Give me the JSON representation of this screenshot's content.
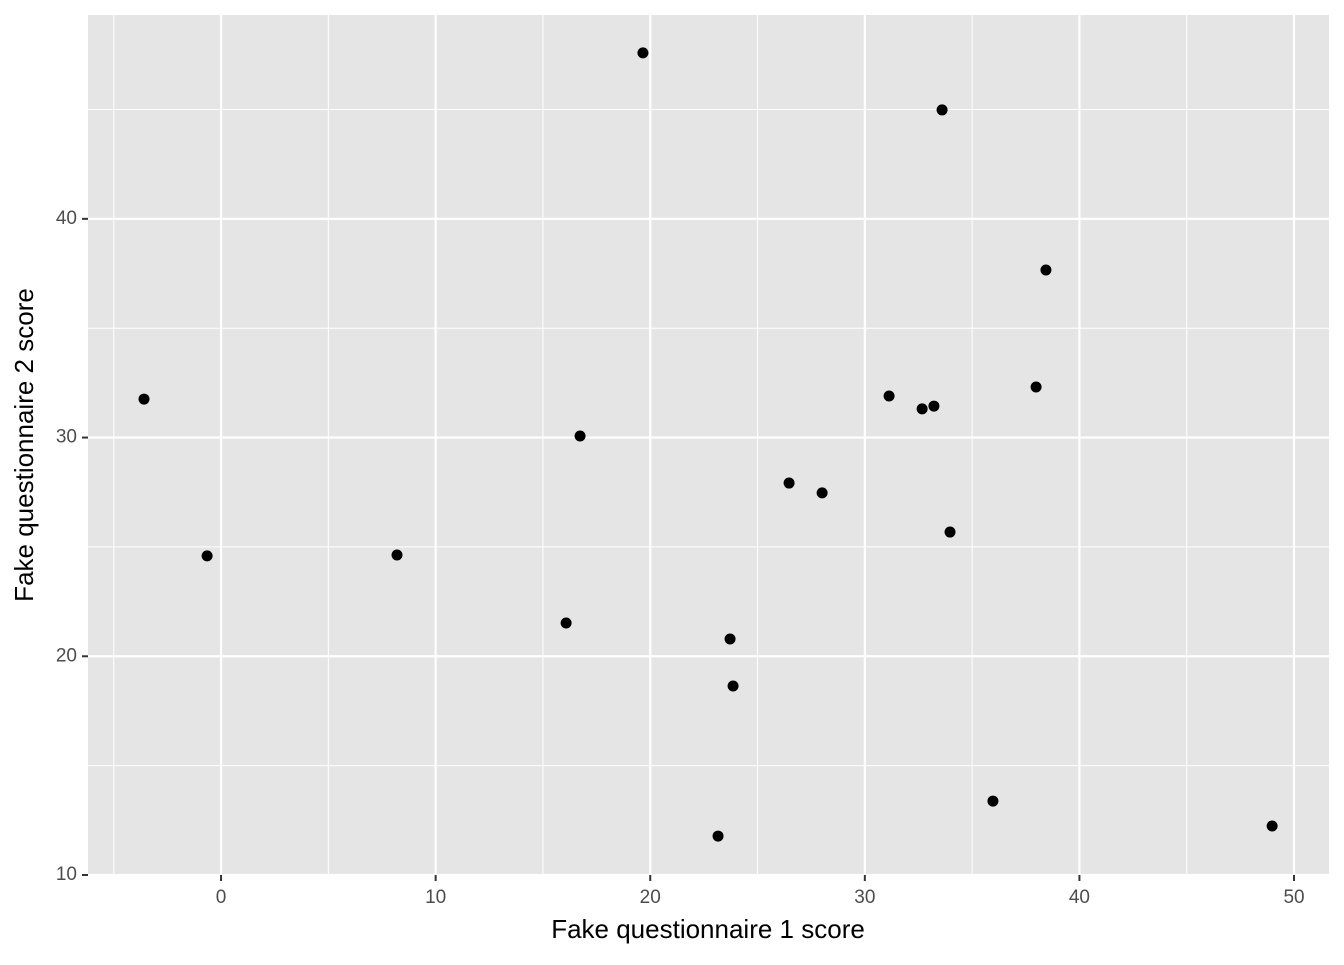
{
  "chart_data": {
    "type": "scatter",
    "xlabel": "Fake questionnaire 1 score",
    "ylabel": "Fake questionnaire 2 score",
    "x": [
      19.66,
      33.6,
      38.44,
      -3.59,
      37.98,
      31.13,
      32.67,
      33.22,
      16.73,
      26.47,
      28.01,
      33.97,
      -0.65,
      8.2,
      16.08,
      23.72,
      23.86,
      35.97,
      23.16,
      48.98
    ],
    "y": [
      47.59,
      44.98,
      37.66,
      31.76,
      32.31,
      31.9,
      31.31,
      31.44,
      30.07,
      27.92,
      27.47,
      25.68,
      24.59,
      24.63,
      21.52,
      20.79,
      18.64,
      13.38,
      11.78,
      12.24
    ],
    "color": "#000000",
    "xlim": [
      -6.2,
      51.63
    ],
    "ylim": [
      10,
      49.32
    ],
    "xticks": [
      0,
      10,
      20,
      30,
      40,
      50
    ],
    "yticks": [
      10,
      20,
      30,
      40
    ],
    "grid": true,
    "minor_grid": true
  }
}
